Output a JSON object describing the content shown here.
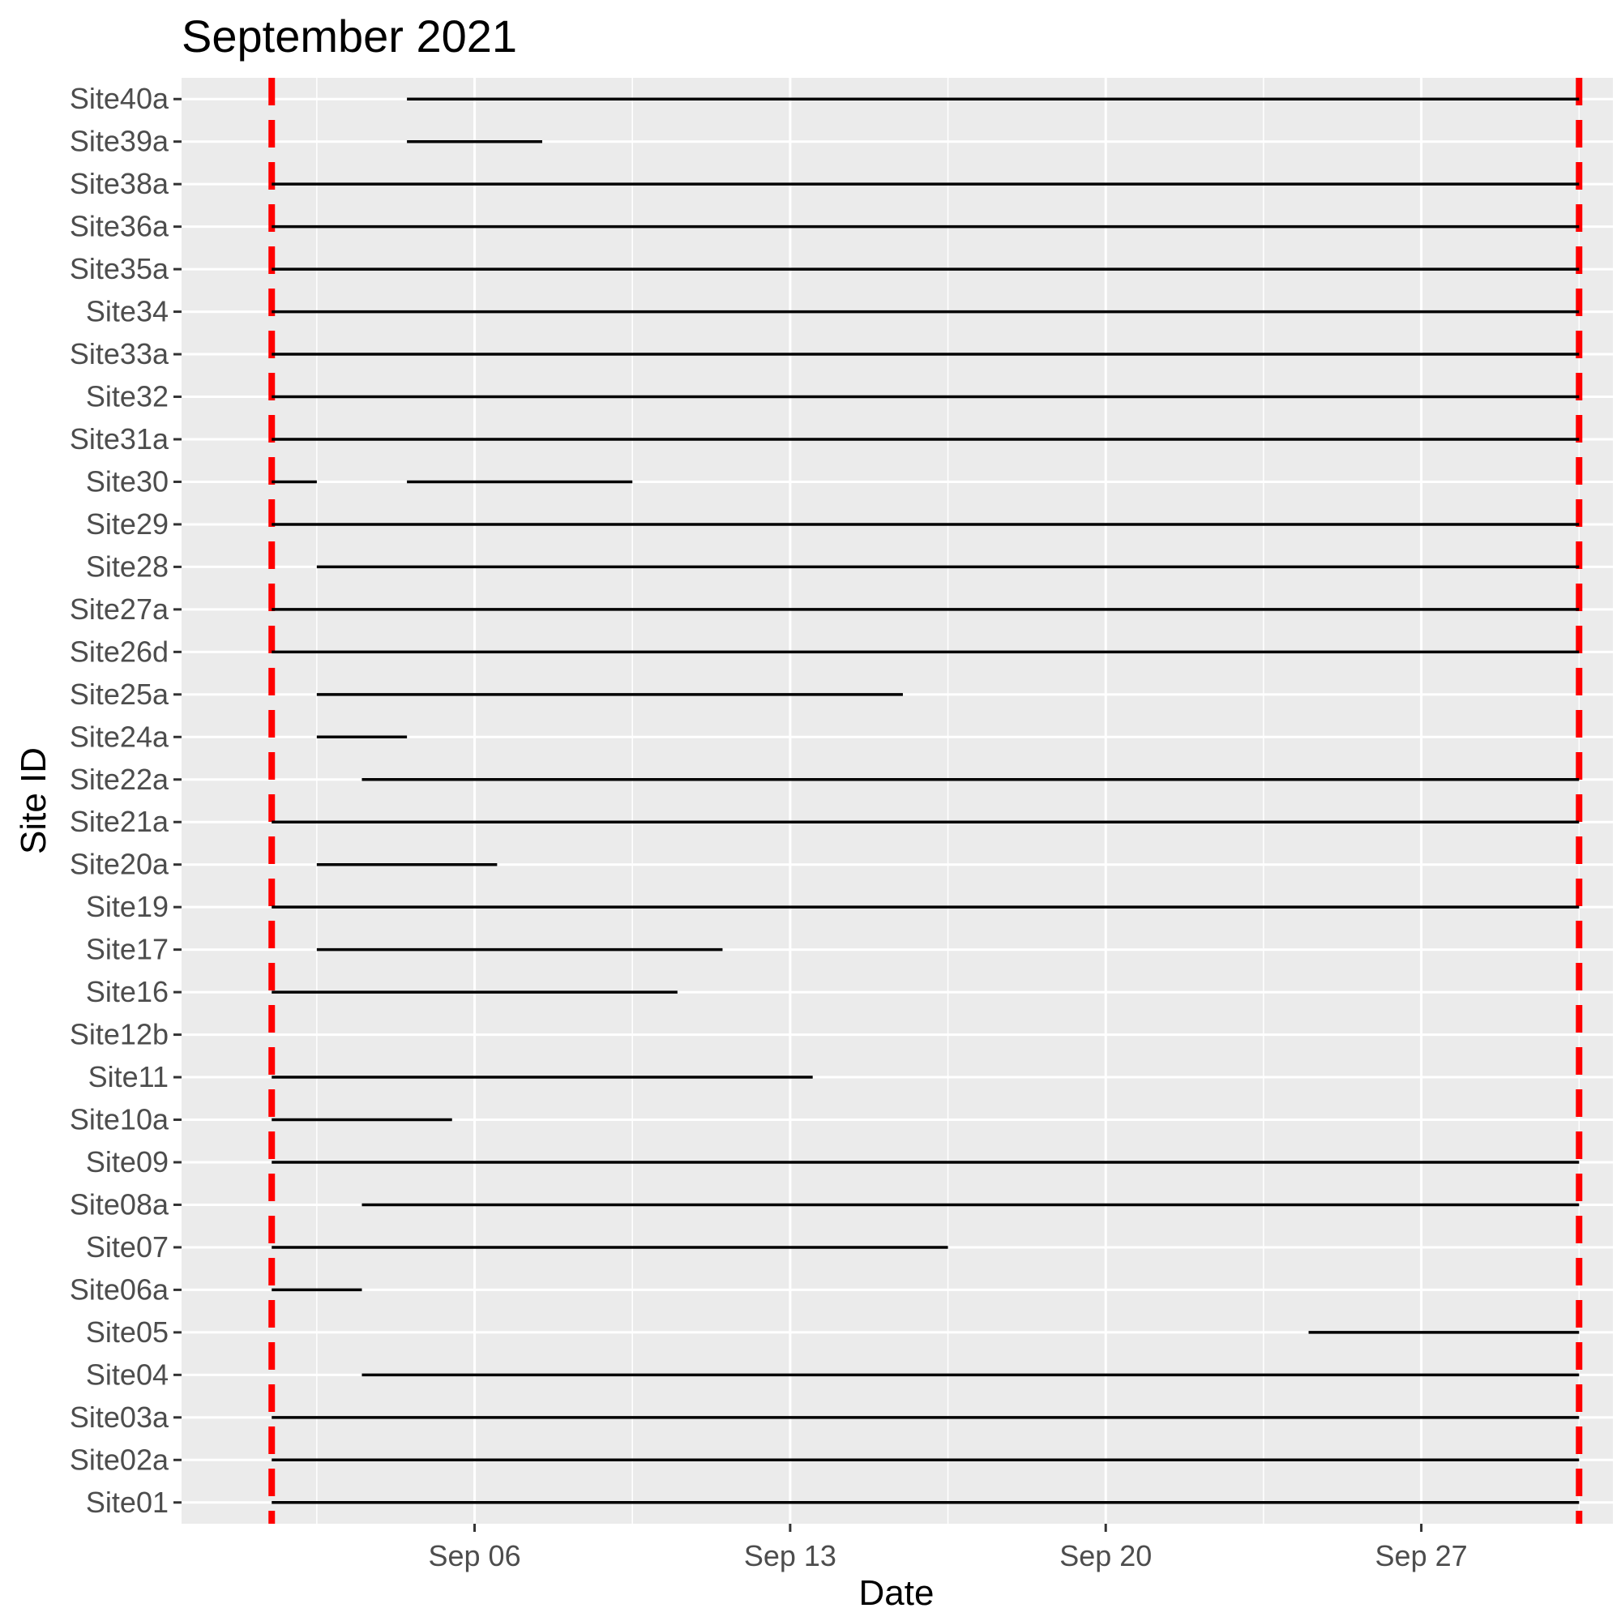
{
  "chart_data": {
    "type": "line",
    "title": "September 2021",
    "xlabel": "Date",
    "ylabel": "Site ID",
    "x_axis": {
      "scale": "date",
      "range": [
        "2021-08-30T12:00",
        "2021-10-01T06:00"
      ],
      "ticks": [
        {
          "date": "2021-09-06",
          "label": "Sep 06"
        },
        {
          "date": "2021-09-13",
          "label": "Sep 13"
        },
        {
          "date": "2021-09-20",
          "label": "Sep 20"
        },
        {
          "date": "2021-09-27",
          "label": "Sep 27"
        }
      ],
      "minor_ticks": [
        "2021-09-02T12:00",
        "2021-09-09T12:00",
        "2021-09-16T12:00",
        "2021-09-23T12:00",
        "2021-09-30T12:00"
      ]
    },
    "grid": true,
    "panel_background": "#ebebeb",
    "gridline_color": "#ffffff",
    "segment_color": "#000000",
    "reference_lines": {
      "color": "#ff0000",
      "style": "dashed",
      "dates": [
        "2021-09-01T12:00",
        "2021-09-30T12:00"
      ]
    },
    "sites": [
      {
        "name": "Site40a",
        "segments": [
          [
            "2021-09-04T12:00",
            "2021-09-30T12:00"
          ]
        ]
      },
      {
        "name": "Site39a",
        "segments": [
          [
            "2021-09-04T12:00",
            "2021-09-07T12:00"
          ]
        ]
      },
      {
        "name": "Site38a",
        "segments": [
          [
            "2021-09-01T12:00",
            "2021-09-30T12:00"
          ]
        ]
      },
      {
        "name": "Site36a",
        "segments": [
          [
            "2021-09-01T12:00",
            "2021-09-30T12:00"
          ]
        ]
      },
      {
        "name": "Site35a",
        "segments": [
          [
            "2021-09-01T12:00",
            "2021-09-30T12:00"
          ]
        ]
      },
      {
        "name": "Site34",
        "segments": [
          [
            "2021-09-01T12:00",
            "2021-09-30T12:00"
          ]
        ]
      },
      {
        "name": "Site33a",
        "segments": [
          [
            "2021-09-01T12:00",
            "2021-09-30T12:00"
          ]
        ]
      },
      {
        "name": "Site32",
        "segments": [
          [
            "2021-09-01T12:00",
            "2021-09-30T12:00"
          ]
        ]
      },
      {
        "name": "Site31a",
        "segments": [
          [
            "2021-09-01T12:00",
            "2021-09-30T12:00"
          ]
        ]
      },
      {
        "name": "Site30",
        "segments": [
          [
            "2021-09-01T12:00",
            "2021-09-02T12:00"
          ],
          [
            "2021-09-04T12:00",
            "2021-09-09T12:00"
          ]
        ]
      },
      {
        "name": "Site29",
        "segments": [
          [
            "2021-09-01T12:00",
            "2021-09-30T12:00"
          ]
        ]
      },
      {
        "name": "Site28",
        "segments": [
          [
            "2021-09-02T12:00",
            "2021-09-30T12:00"
          ]
        ]
      },
      {
        "name": "Site27a",
        "segments": [
          [
            "2021-09-01T12:00",
            "2021-09-30T12:00"
          ]
        ]
      },
      {
        "name": "Site26d",
        "segments": [
          [
            "2021-09-01T12:00",
            "2021-09-30T12:00"
          ]
        ]
      },
      {
        "name": "Site25a",
        "segments": [
          [
            "2021-09-02T12:00",
            "2021-09-15T12:00"
          ]
        ]
      },
      {
        "name": "Site24a",
        "segments": [
          [
            "2021-09-02T12:00",
            "2021-09-04T12:00"
          ]
        ]
      },
      {
        "name": "Site22a",
        "segments": [
          [
            "2021-09-03T12:00",
            "2021-09-30T12:00"
          ]
        ]
      },
      {
        "name": "Site21a",
        "segments": [
          [
            "2021-09-01T12:00",
            "2021-09-30T12:00"
          ]
        ]
      },
      {
        "name": "Site20a",
        "segments": [
          [
            "2021-09-02T12:00",
            "2021-09-06T12:00"
          ]
        ]
      },
      {
        "name": "Site19",
        "segments": [
          [
            "2021-09-01T12:00",
            "2021-09-30T12:00"
          ]
        ]
      },
      {
        "name": "Site17",
        "segments": [
          [
            "2021-09-02T12:00",
            "2021-09-11T12:00"
          ]
        ]
      },
      {
        "name": "Site16",
        "segments": [
          [
            "2021-09-01T12:00",
            "2021-09-10T12:00"
          ]
        ]
      },
      {
        "name": "Site12b",
        "segments": []
      },
      {
        "name": "Site11",
        "segments": [
          [
            "2021-09-01T12:00",
            "2021-09-13T12:00"
          ]
        ]
      },
      {
        "name": "Site10a",
        "segments": [
          [
            "2021-09-01T12:00",
            "2021-09-05T12:00"
          ]
        ]
      },
      {
        "name": "Site09",
        "segments": [
          [
            "2021-09-01T12:00",
            "2021-09-30T12:00"
          ]
        ]
      },
      {
        "name": "Site08a",
        "segments": [
          [
            "2021-09-03T12:00",
            "2021-09-30T12:00"
          ]
        ]
      },
      {
        "name": "Site07",
        "segments": [
          [
            "2021-09-01T12:00",
            "2021-09-16T12:00"
          ]
        ]
      },
      {
        "name": "Site06a",
        "segments": [
          [
            "2021-09-01T12:00",
            "2021-09-03T12:00"
          ]
        ]
      },
      {
        "name": "Site05",
        "segments": [
          [
            "2021-09-24T12:00",
            "2021-09-30T12:00"
          ]
        ]
      },
      {
        "name": "Site04",
        "segments": [
          [
            "2021-09-03T12:00",
            "2021-09-30T12:00"
          ]
        ]
      },
      {
        "name": "Site03a",
        "segments": [
          [
            "2021-09-01T12:00",
            "2021-09-30T12:00"
          ]
        ]
      },
      {
        "name": "Site02a",
        "segments": [
          [
            "2021-09-01T12:00",
            "2021-09-30T12:00"
          ]
        ]
      },
      {
        "name": "Site01",
        "segments": [
          [
            "2021-09-01T12:00",
            "2021-09-30T12:00"
          ]
        ]
      }
    ]
  }
}
